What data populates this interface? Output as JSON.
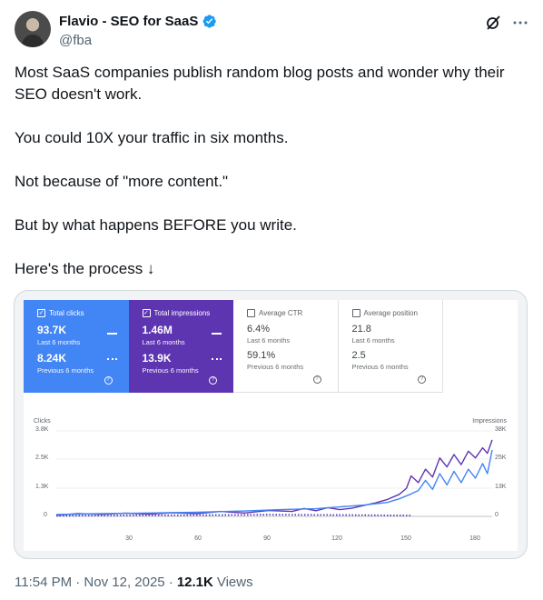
{
  "author": {
    "display_name": "Flavio - SEO for SaaS",
    "handle": "@fba"
  },
  "icons": {
    "verified": "verified-badge-icon",
    "grok": "grok-icon",
    "more": "more-icon"
  },
  "colors": {
    "verified": "#1d9bf0",
    "clicks": "#4285f4",
    "impressions": "#5e35b1"
  },
  "tweet": {
    "paragraphs": [
      "Most SaaS companies publish random blog posts and wonder why their SEO doesn't work.",
      "You could 10X your traffic in six months.",
      "Not because of \"more content.\"",
      "But by what happens BEFORE you write.",
      "Here's the process ↓"
    ]
  },
  "metrics": [
    {
      "label": "Total clicks",
      "value": "93.7K",
      "value_sub": "Last 6 months",
      "prev": "8.24K",
      "prev_sub": "Previous 6 months"
    },
    {
      "label": "Total impressions",
      "value": "1.46M",
      "value_sub": "Last 6 months",
      "prev": "13.9K",
      "prev_sub": "Previous 6 months"
    },
    {
      "label": "Average CTR",
      "value": "6.4%",
      "value_sub": "Last 6 months",
      "prev": "59.1%",
      "prev_sub": "Previous 6 months"
    },
    {
      "label": "Average position",
      "value": "21.8",
      "value_sub": "Last 6 months",
      "prev": "2.5",
      "prev_sub": "Previous 6 months"
    }
  ],
  "chart_data": {
    "type": "line",
    "ylabel": "Clicks",
    "y2label": "Impressions",
    "yticks": [
      "3.8K",
      "2.5K",
      "1.3K",
      "0"
    ],
    "y2ticks": [
      "38K",
      "25K",
      "13K",
      "0"
    ],
    "xticks": [
      "30",
      "60",
      "90",
      "120",
      "150",
      "180"
    ],
    "ylim": [
      0,
      3800
    ],
    "y2lim": [
      0,
      38000
    ],
    "xlim": [
      1,
      184
    ],
    "grid": true,
    "legend": "none",
    "series": [
      {
        "y_axis": "right",
        "color": "#5e35b1",
        "points": [
          [
            1,
            500
          ],
          [
            10,
            1200
          ],
          [
            20,
            900
          ],
          [
            30,
            1400
          ],
          [
            40,
            1000
          ],
          [
            50,
            1600
          ],
          [
            60,
            1200
          ],
          [
            70,
            2200
          ],
          [
            80,
            1500
          ],
          [
            90,
            2600
          ],
          [
            100,
            2200
          ],
          [
            105,
            3500
          ],
          [
            110,
            2500
          ],
          [
            115,
            3900
          ],
          [
            120,
            3000
          ],
          [
            125,
            3600
          ],
          [
            130,
            4800
          ],
          [
            135,
            6000
          ],
          [
            140,
            7500
          ],
          [
            145,
            9800
          ],
          [
            148,
            12500
          ],
          [
            150,
            18000
          ],
          [
            153,
            15000
          ],
          [
            156,
            21000
          ],
          [
            159,
            17500
          ],
          [
            162,
            26000
          ],
          [
            165,
            22000
          ],
          [
            168,
            27500
          ],
          [
            171,
            23000
          ],
          [
            174,
            29000
          ],
          [
            177,
            26000
          ],
          [
            180,
            30500
          ],
          [
            182,
            28000
          ],
          [
            184,
            34000
          ]
        ]
      },
      {
        "y_axis": "left",
        "color": "#4285f4",
        "points": [
          [
            1,
            80
          ],
          [
            20,
            120
          ],
          [
            40,
            150
          ],
          [
            60,
            180
          ],
          [
            80,
            240
          ],
          [
            95,
            300
          ],
          [
            110,
            340
          ],
          [
            120,
            420
          ],
          [
            130,
            500
          ],
          [
            140,
            620
          ],
          [
            145,
            780
          ],
          [
            150,
            1000
          ],
          [
            153,
            1150
          ],
          [
            156,
            1600
          ],
          [
            159,
            1200
          ],
          [
            162,
            1900
          ],
          [
            165,
            1400
          ],
          [
            168,
            2000
          ],
          [
            171,
            1500
          ],
          [
            174,
            2100
          ],
          [
            177,
            1700
          ],
          [
            180,
            2350
          ],
          [
            182,
            1900
          ],
          [
            184,
            2950
          ]
        ]
      },
      {
        "y_axis": "left",
        "color": "#4285f4",
        "style": "dotted",
        "points": [
          [
            1,
            20
          ],
          [
            30,
            40
          ],
          [
            60,
            60
          ],
          [
            90,
            80
          ],
          [
            120,
            70
          ],
          [
            150,
            40
          ]
        ]
      },
      {
        "y_axis": "right",
        "color": "#5e35b1",
        "style": "dotted",
        "points": [
          [
            1,
            300
          ],
          [
            30,
            450
          ],
          [
            60,
            500
          ],
          [
            90,
            700
          ],
          [
            120,
            550
          ],
          [
            150,
            350
          ]
        ]
      }
    ]
  },
  "footer": {
    "time": "11:54 PM · Nov 12, 2025 · ",
    "views_count": "12.1K",
    "views_label": "Views"
  }
}
